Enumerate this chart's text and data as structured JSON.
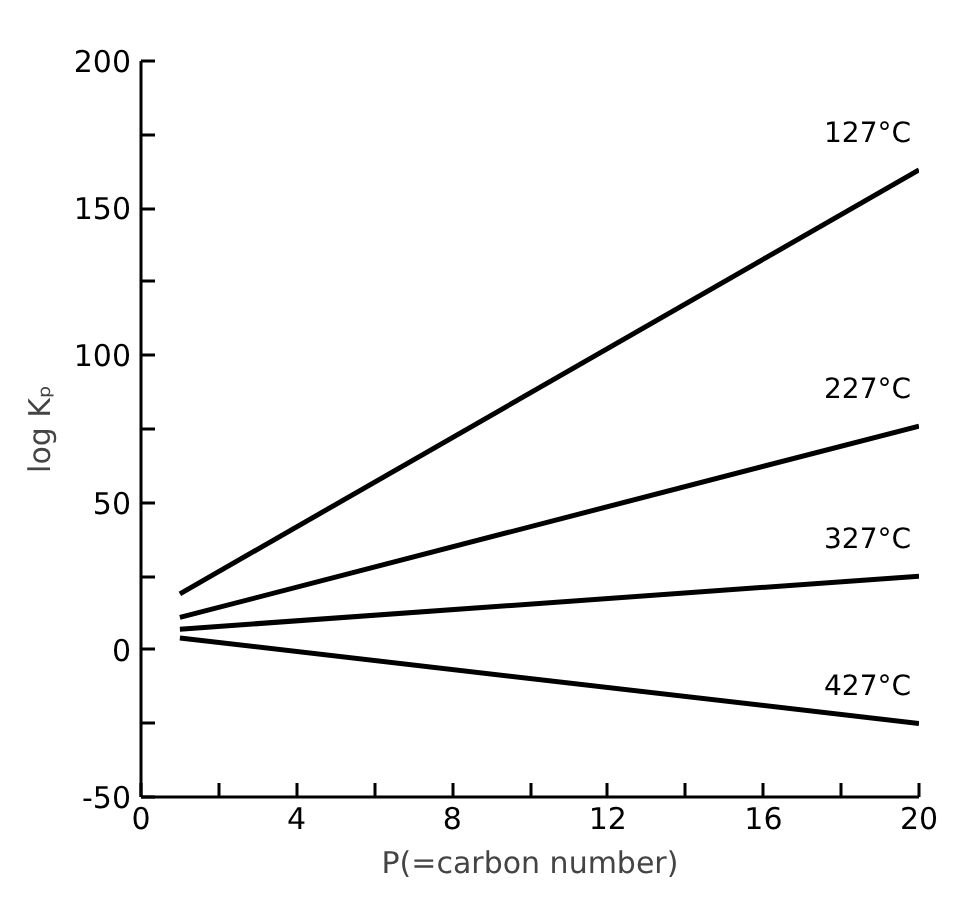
{
  "chart_data": {
    "type": "line",
    "xlabel": "P(=carbon number)",
    "ylabel": "log Kₚ",
    "xlim": [
      0,
      20
    ],
    "ylim": [
      -50,
      200
    ],
    "xticks": [
      0,
      {
        "value": 2,
        "label": null
      },
      4,
      {
        "value": 6,
        "label": null
      },
      8,
      {
        "value": 10,
        "label": null
      },
      12,
      {
        "value": 14,
        "label": null
      },
      16,
      {
        "value": 18,
        "label": null
      },
      20
    ],
    "yticks": [
      -50,
      {
        "value": -25,
        "label": null
      },
      0,
      {
        "value": 25,
        "label": null
      },
      50,
      {
        "value": 75,
        "label": null
      },
      100,
      {
        "value": 125,
        "label": null
      },
      150,
      {
        "value": 175,
        "label": null
      },
      200
    ],
    "grid": false,
    "marker": "none",
    "line_style": "solid",
    "x": [
      1,
      20
    ],
    "series": [
      {
        "name": "127°C",
        "color": "#000000",
        "values": [
          19,
          163
        ]
      },
      {
        "name": "227°C",
        "color": "#000000",
        "values": [
          11,
          76
        ]
      },
      {
        "name": "327°C",
        "color": "#000000",
        "values": [
          7,
          25
        ]
      },
      {
        "name": "427°C",
        "color": "#000000",
        "values": [
          4,
          -25
        ]
      }
    ]
  }
}
